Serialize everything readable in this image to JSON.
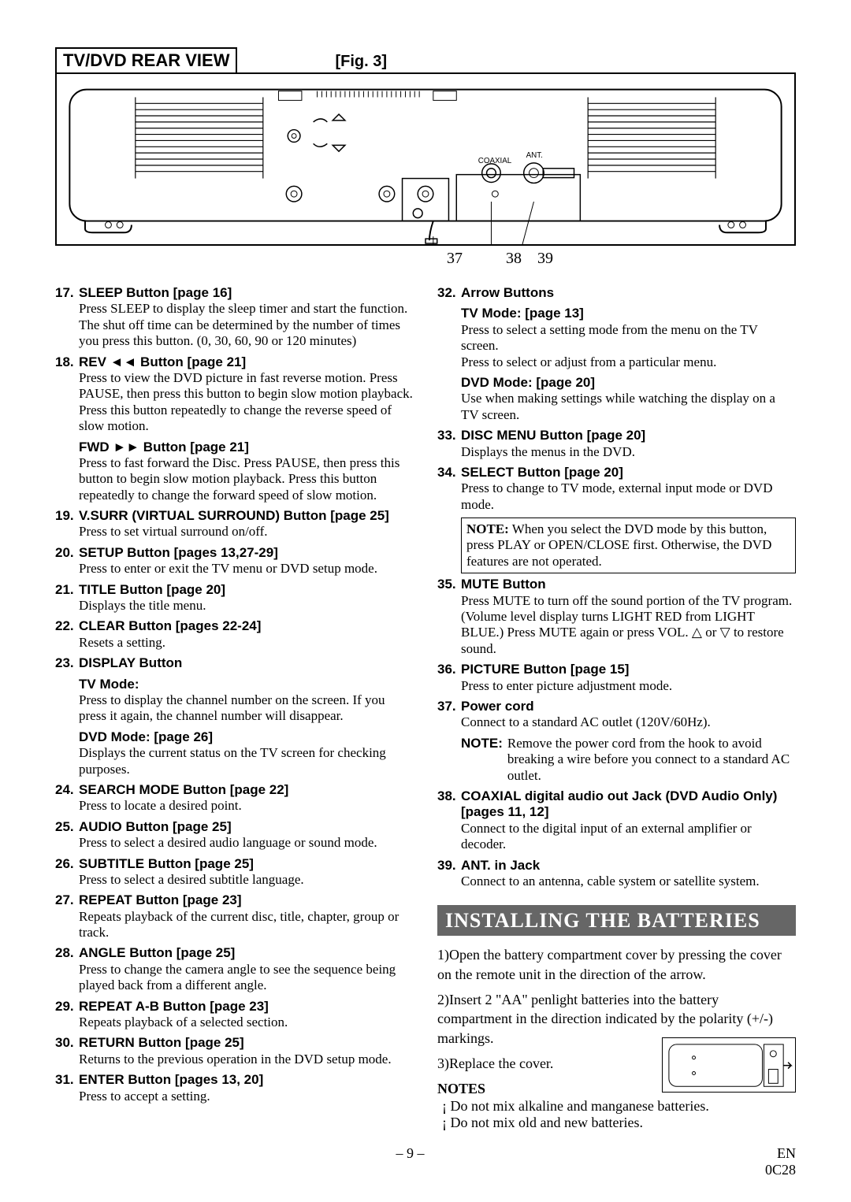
{
  "figure": {
    "title": "TV/DVD REAR VIEW",
    "label": "[Fig. 3]",
    "callouts": [
      "37",
      "38",
      "39"
    ],
    "coaxial_label": "COAXIAL",
    "ant_label": "ANT."
  },
  "left": [
    {
      "n": "17.",
      "t": "SLEEP Button [page 16]",
      "d": "Press SLEEP to display the sleep timer and start the function. The shut off time can be determined by the number of times you press this button. (0, 30, 60, 90 or 120 minutes)"
    },
    {
      "n": "18.",
      "t": "REV ◄◄ Button [page 21]",
      "d": "Press to view the DVD picture in fast reverse motion. Press PAUSE, then press this button to begin slow motion playback. Press this button repeatedly to change the reverse speed of slow motion."
    },
    {
      "n": "",
      "t": "FWD ►► Button [page 21]",
      "d": "Press to fast forward the Disc. Press PAUSE, then press this button to begin slow motion playback. Press this button repeatedly to change the forward speed of slow motion."
    },
    {
      "n": "19.",
      "t": "V.SURR (VIRTUAL SURROUND) Button [page 25]",
      "d": "Press to set virtual surround on/off."
    },
    {
      "n": "20.",
      "t": "SETUP Button [pages 13,27-29]",
      "d": "Press to enter or exit the TV menu or DVD setup mode."
    },
    {
      "n": "21.",
      "t": "TITLE Button [page 20]",
      "d": "Displays the title menu."
    },
    {
      "n": "22.",
      "t": "CLEAR Button [pages 22-24]",
      "d": "Resets a setting."
    },
    {
      "n": "23.",
      "t": "DISPLAY Button",
      "d": ""
    },
    {
      "n": "",
      "t": "TV Mode:",
      "d": "Press to display the channel number on the screen. If you press it again, the channel number will disappear."
    },
    {
      "n": "",
      "t": "DVD Mode: [page 26]",
      "d": "Displays the current status on the TV screen for checking purposes."
    },
    {
      "n": "24.",
      "t": "SEARCH MODE Button [page 22]",
      "d": "Press to locate a desired point."
    },
    {
      "n": "25.",
      "t": "AUDIO Button [page 25]",
      "d": "Press to select a desired audio language or sound mode."
    },
    {
      "n": "26.",
      "t": "SUBTITLE Button [page 25]",
      "d": "Press to select a desired subtitle language."
    },
    {
      "n": "27.",
      "t": "REPEAT Button [page 23]",
      "d": "Repeats playback of the current disc, title, chapter, group or track."
    },
    {
      "n": "28.",
      "t": "ANGLE Button [page 25]",
      "d": "Press to change the camera angle to see the sequence being played back from a different angle."
    },
    {
      "n": "29.",
      "t": "REPEAT A-B Button [page 23]",
      "d": "Repeats playback of a selected section."
    },
    {
      "n": "30.",
      "t": "RETURN Button [page 25]",
      "d": "Returns to the previous operation in the DVD setup mode."
    },
    {
      "n": "31.",
      "t": "ENTER Button [pages 13, 20]",
      "d": "Press to accept a setting."
    }
  ],
  "right": [
    {
      "n": "32.",
      "t": "Arrow Buttons",
      "d": ""
    },
    {
      "n": "",
      "t": "TV Mode: [page 13]",
      "d": "Press to select a setting mode from the menu on the TV screen.\nPress to select or adjust from a particular menu."
    },
    {
      "n": "",
      "t": "DVD Mode: [page 20]",
      "d": "Use when making settings while watching the display on a TV screen."
    },
    {
      "n": "33.",
      "t": "DISC MENU Button [page 20]",
      "d": "Displays the menus in the DVD."
    },
    {
      "n": "34.",
      "t": "SELECT Button [page 20]",
      "d": "Press to change to TV mode, external input mode or DVD mode."
    }
  ],
  "note34": "NOTE: When you select the DVD mode by this button, press PLAY or OPEN/CLOSE first. Otherwise, the DVD features are not operated.",
  "right2": [
    {
      "n": "35.",
      "t": "MUTE Button",
      "d": "Press MUTE to turn off the sound portion of the TV program. (Volume level display turns LIGHT RED from LIGHT BLUE.) Press MUTE again or press VOL. △ or ▽ to restore sound."
    },
    {
      "n": "36.",
      "t": "PICTURE Button [page 15]",
      "d": "Press to enter picture adjustment mode."
    },
    {
      "n": "37.",
      "t": "Power cord",
      "d": "Connect to a standard AC outlet (120V/60Hz)."
    }
  ],
  "note37": {
    "label": "NOTE:",
    "text": "Remove the power cord from the hook to avoid breaking a wire before you connect to a standard AC outlet."
  },
  "right3": [
    {
      "n": "38.",
      "t": "COAXIAL digital audio out Jack (DVD Audio Only) [pages 11, 12]",
      "d": "Connect to the digital input of an external amplifier or decoder."
    },
    {
      "n": "39.",
      "t": "ANT. in Jack",
      "d": "Connect to an antenna, cable system or satellite system."
    }
  ],
  "banner": "INSTALLING THE BATTERIES",
  "steps": [
    "1)Open the battery compartment cover by pressing the cover on the remote unit in the direction of the arrow.",
    "2)Insert 2 \"AA\" penlight batteries into the battery compartment in the direction indicated by the polarity (+/-) markings.",
    "3)Replace the cover."
  ],
  "notes_header": "NOTES",
  "notes": [
    "Do not mix alkaline and manganese batteries.",
    "Do not mix old and new batteries."
  ],
  "footer": {
    "page": "– 9 –",
    "lang": "EN",
    "code": "0C28"
  }
}
